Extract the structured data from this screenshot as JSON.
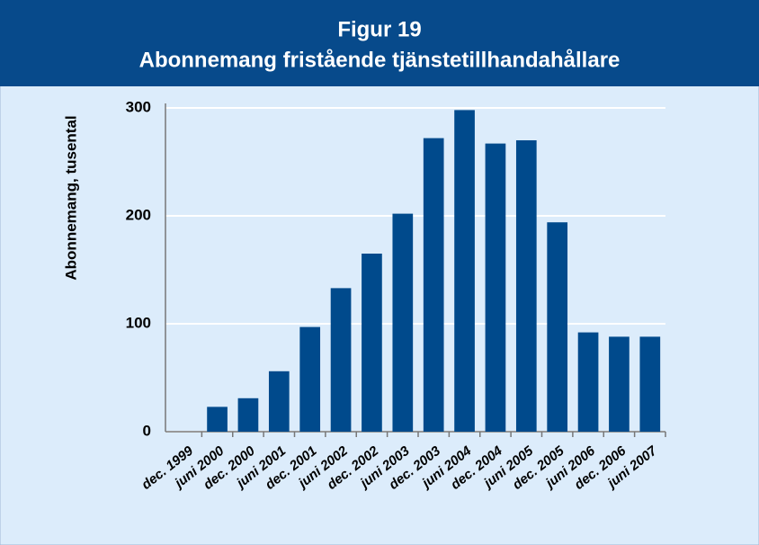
{
  "chart_data": {
    "type": "bar",
    "title": "Figur 19",
    "subtitle": "Abonnemang fristående tjänstetillhandahållare",
    "y_label": "Abonnemang, tusental",
    "categories": [
      "dec. 1999",
      "juni 2000",
      "dec. 2000",
      "juni 2001",
      "dec. 2001",
      "juni 2002",
      "dec. 2002",
      "juni 2003",
      "dec. 2003",
      "juni 2004",
      "dec. 2004",
      "juni 2005",
      "dec. 2005",
      "juni 2006",
      "dec. 2006",
      "juni 2007"
    ],
    "values": [
      0,
      23,
      31,
      56,
      97,
      133,
      165,
      202,
      272,
      298,
      267,
      270,
      194,
      92,
      88,
      88
    ],
    "color": "#004a8c",
    "ylim": [
      0,
      300
    ],
    "yticks": [
      0,
      100,
      200,
      300
    ],
    "grid": true
  }
}
